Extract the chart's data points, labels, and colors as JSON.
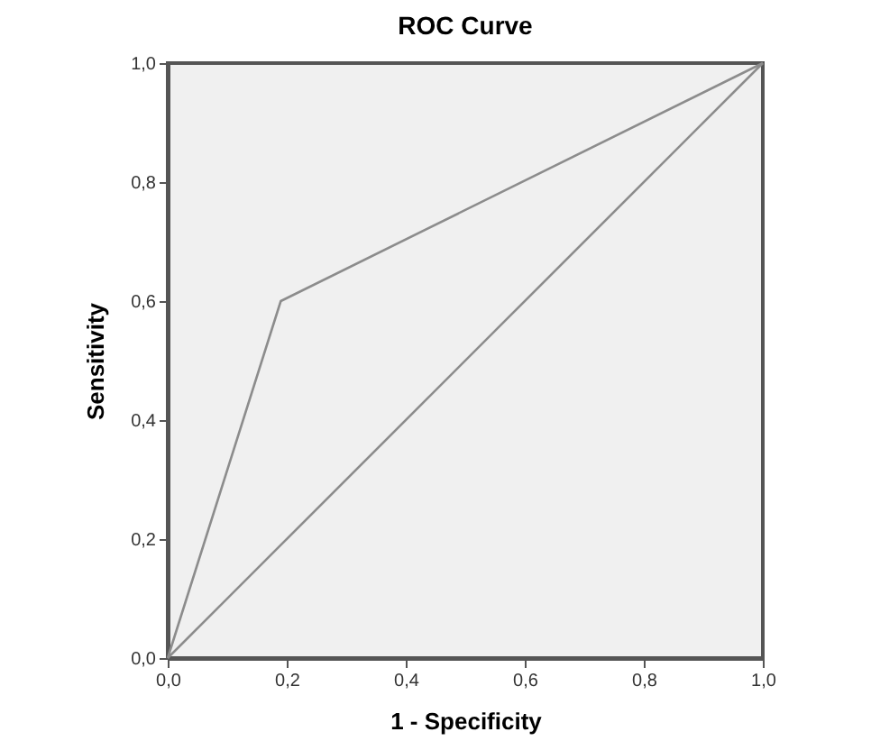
{
  "chart_data": {
    "type": "line",
    "title": "ROC Curve",
    "xlabel": "1 - Specificity",
    "ylabel": "Sensitivity",
    "series": [
      {
        "x": [
          0,
          0.19,
          1
        ],
        "values": [
          0,
          0.6,
          1
        ],
        "color": "#8c8c8c"
      },
      {
        "x": [
          0,
          1
        ],
        "values": [
          0,
          1
        ],
        "color": "#8c8c8c"
      }
    ],
    "xlim": [
      0,
      1
    ],
    "ylim": [
      0,
      1
    ],
    "xticks": [
      {
        "value": 0,
        "label": "0,0"
      },
      {
        "value": 0.2,
        "label": "0,2"
      },
      {
        "value": 0.4,
        "label": "0,4"
      },
      {
        "value": 0.6,
        "label": "0,6"
      },
      {
        "value": 0.8,
        "label": "0,8"
      },
      {
        "value": 1,
        "label": "1,0"
      }
    ],
    "yticks": [
      {
        "value": 0,
        "label": "0,0"
      },
      {
        "value": 0.2,
        "label": "0,2"
      },
      {
        "value": 0.4,
        "label": "0,4"
      },
      {
        "value": 0.6,
        "label": "0,6"
      },
      {
        "value": 0.8,
        "label": "0,8"
      },
      {
        "value": 1,
        "label": "1,0"
      }
    ],
    "grid": false,
    "marker": "none",
    "line_style": "solid"
  }
}
